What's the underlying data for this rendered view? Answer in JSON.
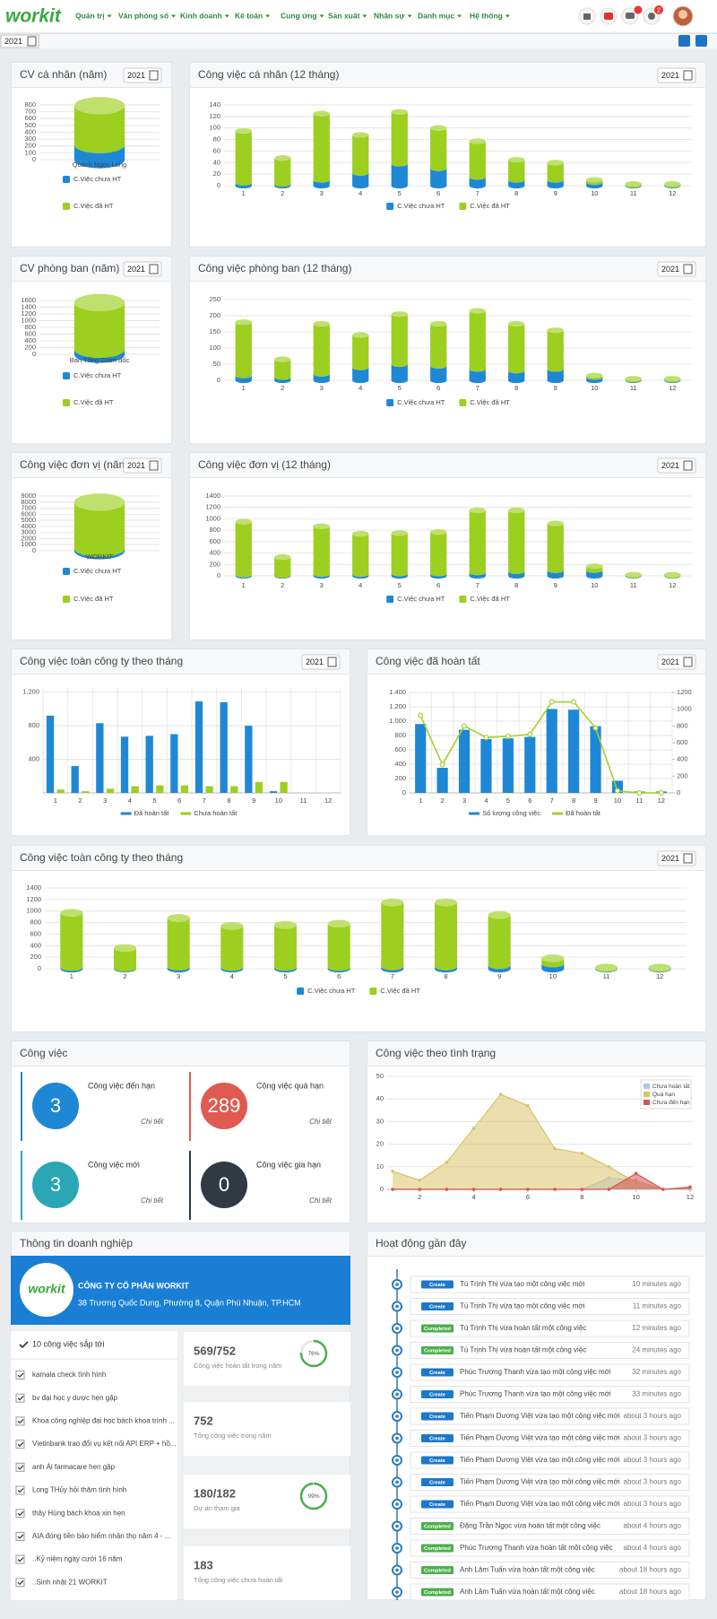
{
  "navbar": {
    "logo": "workit",
    "menu": [
      "Quản trị",
      "Văn phòng số",
      "Kinh doanh",
      "Kế toán",
      "Cung ứng",
      "Sản xuất",
      "Nhân sự",
      "Danh mục",
      "Hệ thống"
    ],
    "notification_count": "2"
  },
  "year_filter": "2021",
  "charts": [
    {
      "type": "cylinder",
      "title": "CV cá nhân (năm)",
      "year": "2021",
      "categories": [
        "Quách Ngọc Long"
      ],
      "series": [
        {
          "name": "C.Việc chưa HT",
          "color": "#1e88d6",
          "values": [
            220
          ]
        },
        {
          "name": "C.Việc đã HT",
          "color": "#9ccf1f",
          "values": [
            570
          ]
        }
      ],
      "ylim": [
        0,
        800
      ],
      "yticks": [
        0,
        100,
        200,
        300,
        400,
        500,
        600,
        700,
        800
      ],
      "grid": true
    },
    {
      "type": "cylinder",
      "title": "Công việc cá nhân (12 tháng)",
      "year": "2021",
      "categories": [
        "1",
        "2",
        "3",
        "4",
        "5",
        "6",
        "7",
        "8",
        "9",
        "10",
        "11",
        "12"
      ],
      "series": [
        {
          "name": "C.Việc chưa HT",
          "color": "#1e88d6",
          "values": [
            5,
            3,
            10,
            22,
            38,
            30,
            15,
            10,
            10,
            6,
            1,
            1
          ]
        },
        {
          "name": "C.Việc đã HT",
          "color": "#9ccf1f",
          "values": [
            90,
            45,
            115,
            66,
            90,
            70,
            62,
            35,
            30,
            4,
            2,
            2
          ]
        }
      ],
      "ylim": [
        0,
        140
      ],
      "yticks": [
        0,
        20,
        40,
        60,
        80,
        100,
        120,
        140
      ],
      "grid": true
    },
    {
      "type": "cylinder",
      "title": "CV phòng ban (năm)",
      "year": "2021",
      "categories": [
        "Ban Tổng Giám đốc"
      ],
      "series": [
        {
          "name": "C.Việc chưa HT",
          "color": "#1e88d6",
          "values": [
            150
          ]
        },
        {
          "name": "C.Việc đã HT",
          "color": "#9ccf1f",
          "values": [
            1390
          ]
        }
      ],
      "ylim": [
        0,
        1600
      ],
      "yticks": [
        0,
        200,
        400,
        600,
        800,
        1000,
        1200,
        1400,
        1600
      ],
      "grid": true
    },
    {
      "type": "cylinder",
      "title": "Công việc phòng ban (12 tháng)",
      "year": "2021",
      "categories": [
        "1",
        "2",
        "3",
        "4",
        "5",
        "6",
        "7",
        "8",
        "9",
        "10",
        "11",
        "12"
      ],
      "series": [
        {
          "name": "C.Việc chưa HT",
          "color": "#1e88d6",
          "values": [
            15,
            10,
            20,
            40,
            50,
            45,
            35,
            30,
            35,
            10,
            2,
            2
          ]
        },
        {
          "name": "C.Việc đã HT",
          "color": "#9ccf1f",
          "values": [
            165,
            55,
            155,
            100,
            155,
            130,
            180,
            145,
            120,
            5,
            3,
            3
          ]
        }
      ],
      "ylim": [
        0,
        250
      ],
      "yticks": [
        0,
        50,
        100,
        150,
        200,
        250
      ],
      "grid": true
    },
    {
      "type": "cylinder",
      "title": "Công việc đơn vị (năm)",
      "year": "2021",
      "categories": [
        "WORKIT"
      ],
      "series": [
        {
          "name": "C.Việc chưa HT",
          "color": "#1e88d6",
          "values": [
            400
          ]
        },
        {
          "name": "C.Việc đã HT",
          "color": "#9ccf1f",
          "values": [
            7600
          ]
        }
      ],
      "ylim": [
        0,
        9000
      ],
      "yticks": [
        0,
        1000,
        2000,
        3000,
        4000,
        5000,
        6000,
        7000,
        8000,
        9000
      ],
      "grid": true
    },
    {
      "type": "cylinder",
      "title": "Công việc đơn vị (12 tháng)",
      "year": "2021",
      "categories": [
        "1",
        "2",
        "3",
        "4",
        "5",
        "6",
        "7",
        "8",
        "9",
        "10",
        "11",
        "12"
      ],
      "series": [
        {
          "name": "C.Việc chưa HT",
          "color": "#1e88d6",
          "values": [
            20,
            10,
            30,
            30,
            40,
            40,
            60,
            80,
            100,
            100,
            5,
            5
          ]
        },
        {
          "name": "C.Việc đã HT",
          "color": "#9ccf1f",
          "values": [
            930,
            320,
            840,
            710,
            710,
            730,
            1090,
            1070,
            820,
            70,
            15,
            15
          ]
        }
      ],
      "ylim": [
        0,
        1400
      ],
      "yticks": [
        0,
        200,
        400,
        600,
        800,
        1000,
        1200,
        1400
      ],
      "grid": true
    },
    {
      "type": "bar",
      "title": "Công việc toàn công ty theo tháng",
      "year": "2021",
      "categories": [
        "1",
        "2",
        "3",
        "4",
        "5",
        "6",
        "7",
        "8",
        "9",
        "10",
        "11",
        "12"
      ],
      "series": [
        {
          "name": "Đã hoàn tất",
          "color": "#1e88d6",
          "values": [
            920,
            320,
            830,
            670,
            680,
            700,
            1090,
            1080,
            800,
            20,
            0,
            0
          ]
        },
        {
          "name": "Chưa hoàn tất",
          "color": "#9ccf1f",
          "values": [
            40,
            20,
            50,
            80,
            90,
            90,
            80,
            80,
            130,
            130,
            0,
            0
          ]
        }
      ],
      "ylim": [
        0,
        1250
      ],
      "yticks": [
        400,
        800,
        {
          "value": 1200,
          "label": "1.200"
        }
      ],
      "grid": true
    },
    {
      "type": "combo",
      "title": "Công việc đã hoàn tất",
      "year": "2021",
      "categories": [
        "1",
        "2",
        "3",
        "4",
        "5",
        "6",
        "7",
        "8",
        "9",
        "10",
        "11",
        "12"
      ],
      "series": [
        {
          "name": "Số lượng công việc",
          "color": "#1e88d6",
          "values": [
            960,
            350,
            880,
            750,
            760,
            780,
            1170,
            1160,
            930,
            170,
            20,
            20
          ]
        },
        {
          "name": "Đã hoàn tất",
          "color": "#a5cf2a",
          "axis": "y2",
          "values": [
            925,
            337,
            800,
            662,
            675,
            700,
            1087,
            1087,
            775,
            25,
            0,
            0
          ]
        }
      ],
      "ylim": [
        0,
        1400
      ],
      "yticks": [
        0,
        200,
        400,
        600,
        800,
        {
          "value": 1000,
          "label": "1.000"
        },
        {
          "value": 1200,
          "label": "1.200"
        },
        {
          "value": 1400,
          "label": "1.400"
        }
      ],
      "y2lim": [
        0,
        1200
      ],
      "y2ticks": [
        0,
        200,
        400,
        600,
        800,
        1000,
        1200
      ],
      "grid": true
    },
    {
      "type": "cylinder",
      "title": "Công việc toàn công ty theo tháng",
      "year": "2021",
      "categories": [
        "1",
        "2",
        "3",
        "4",
        "5",
        "6",
        "7",
        "8",
        "9",
        "10",
        "11",
        "12"
      ],
      "series": [
        {
          "name": "C.Việc chưa HT",
          "color": "#1e88d6",
          "values": [
            30,
            15,
            35,
            30,
            30,
            30,
            40,
            40,
            60,
            90,
            10,
            10
          ]
        },
        {
          "name": "C.Việc đã HT",
          "color": "#9ccf1f",
          "values": [
            940,
            345,
            845,
            710,
            730,
            750,
            1110,
            1110,
            870,
            90,
            10,
            10
          ]
        }
      ],
      "ylim": [
        0,
        1400
      ],
      "yticks": [
        0,
        200,
        400,
        600,
        800,
        1000,
        1200,
        1400
      ],
      "grid": true
    },
    {
      "type": "area",
      "title": "Công việc theo tình trạng",
      "x": [
        1,
        2,
        3,
        4,
        5,
        6,
        7,
        8,
        9,
        10,
        11,
        12
      ],
      "series": [
        {
          "name": "Chưa hoàn tất",
          "color": "#a9c8ea",
          "values": [
            0,
            0,
            0,
            0,
            0,
            0,
            0,
            0,
            5,
            4,
            0,
            0
          ]
        },
        {
          "name": "Quá hạn",
          "color": "#d8c46a",
          "values": [
            8,
            4,
            12,
            27,
            42,
            37,
            18,
            16,
            10,
            3,
            0,
            1
          ]
        },
        {
          "name": "Chưa đến hạn",
          "color": "#d9534f",
          "values": [
            0,
            0,
            0,
            0,
            0,
            0,
            0,
            0,
            0,
            7,
            0,
            1
          ]
        }
      ],
      "xlim": [
        0.8,
        12.1
      ],
      "xticks": [
        2,
        4,
        6,
        8,
        10,
        12
      ],
      "ylim": [
        0,
        50
      ],
      "yticks": [
        0,
        10,
        20,
        30,
        40,
        50
      ],
      "grid": true
    }
  ],
  "task_summary": {
    "title": "Công việc",
    "cards": [
      {
        "label": "Công việc đến hạn",
        "value": 3,
        "link": "Chi tiết",
        "color": "#1e88d6"
      },
      {
        "label": "Công việc quá hạn",
        "value": 289,
        "link": "Chi tiết",
        "color": "#e05a4f"
      },
      {
        "label": "Công việc mới",
        "value": 3,
        "link": "Chi tiết",
        "color": "#2aa6b5"
      },
      {
        "label": "Công việc gia hạn",
        "value": 0,
        "link": "Chi tiết",
        "color": "#2f3a45"
      }
    ]
  },
  "company": {
    "title": "Thông tin doanh nghiệp",
    "logo": "workit",
    "name": "CÔNG TY CỔ PHẦN WORKIT",
    "address": "38 Trương Quốc Dung, Phường 8, Quận Phú Nhuận, TP.HCM",
    "upcoming": {
      "title": "10 công việc sắp tới",
      "items": [
        "kamala check tình hình",
        "bv đại học y dược hẹn gặp",
        "Khoa công nghiệp đại học bách khoa trình ...",
        "Vietinbank trao đổi vụ kết nối API ERP + hồ...",
        "anh Ái farmacare hẹn gặp",
        "Long THủy hỏi thăm tình hình",
        "thầy Hùng bách khoa xin hẹn",
        "AIA đóng tiền bảo hiểm nhân thọ năm 4 - ...",
        "..Kỷ niệm ngày cưới 16 năm",
        "..Sinh nhật 21 WORKIT"
      ]
    },
    "stats": [
      {
        "value": "569/752",
        "label": "Công việc hoàn tất trong năm",
        "percent": {
          "value": 76,
          "label": "76%"
        }
      },
      {
        "value": "752",
        "label": "Tổng công việc trong năm"
      },
      {
        "value": "180/182",
        "label": "Dự án tham gia",
        "percent": {
          "value": 99,
          "label": "99%"
        }
      },
      {
        "value": "183",
        "label": "Tổng công việc chưa hoàn tất"
      }
    ]
  },
  "activity": {
    "title": "Hoạt động gần đây",
    "items": [
      {
        "badge": "Create",
        "color": "#1e78c8",
        "text": "Tú Trịnh Thị vừa tạo một công việc mới",
        "time": "10 minutes ago"
      },
      {
        "badge": "Create",
        "color": "#1e78c8",
        "text": "Tú Trịnh Thị vừa tạo một công việc mới",
        "time": "11 minutes ago"
      },
      {
        "badge": "Completed",
        "color": "#4cae4c",
        "text": "Tú Trịnh Thị vừa hoàn tất một công việc",
        "time": "12 minutes ago"
      },
      {
        "badge": "Completed",
        "color": "#4cae4c",
        "text": "Tú Trịnh Thị vừa hoàn tất một công việc",
        "time": "24 minutes ago"
      },
      {
        "badge": "Create",
        "color": "#1e78c8",
        "text": "Phúc Trương Thanh vừa tạo một công việc mới",
        "time": "32 minutes ago"
      },
      {
        "badge": "Create",
        "color": "#1e78c8",
        "text": "Phúc Trương Thanh vừa tạo một công việc mới",
        "time": "33 minutes ago"
      },
      {
        "badge": "Create",
        "color": "#1e78c8",
        "text": "Tiến Phạm Dương Việt vừa tạo một công việc mới",
        "time": "about 3 hours ago"
      },
      {
        "badge": "Create",
        "color": "#1e78c8",
        "text": "Tiến Phạm Dương Việt vừa tạo một công việc mới",
        "time": "about 3 hours ago"
      },
      {
        "badge": "Create",
        "color": "#1e78c8",
        "text": "Tiến Phạm Dương Việt vừa tạo một công việc mới",
        "time": "about 3 hours ago"
      },
      {
        "badge": "Create",
        "color": "#1e78c8",
        "text": "Tiến Phạm Dương Việt vừa tạo một công việc mới",
        "time": "about 3 hours ago"
      },
      {
        "badge": "Create",
        "color": "#1e78c8",
        "text": "Tiến Phạm Dương Việt vừa tạo một công việc mới",
        "time": "about 3 hours ago"
      },
      {
        "badge": "Completed",
        "color": "#4cae4c",
        "text": "Đặng Trần Ngọc vừa hoàn tất một công việc",
        "time": "about 4 hours ago"
      },
      {
        "badge": "Completed",
        "color": "#4cae4c",
        "text": "Phúc Trương Thanh vừa hoàn tất một công việc",
        "time": "about 4 hours ago"
      },
      {
        "badge": "Completed",
        "color": "#4cae4c",
        "text": "Anh Lâm Tuấn vừa hoàn tất một công việc",
        "time": "about 18 hours ago"
      },
      {
        "badge": "Completed",
        "color": "#4cae4c",
        "text": "Anh Lâm Tuấn vừa hoàn tất một công việc",
        "time": "about 18 hours ago"
      }
    ]
  }
}
